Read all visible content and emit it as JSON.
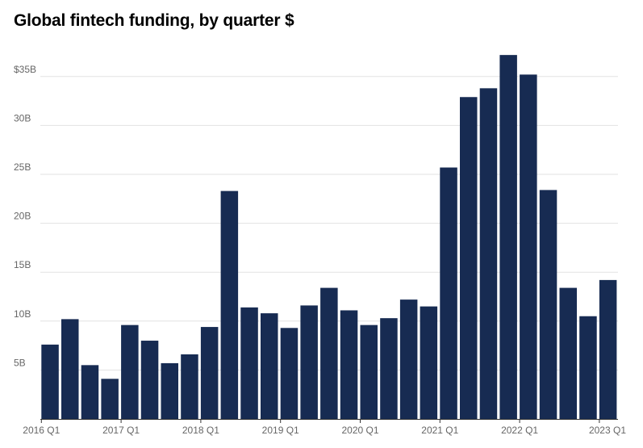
{
  "chart_data": {
    "type": "bar",
    "title": "Global fintech funding, by quarter $",
    "categories": [
      "2016 Q1",
      "2016 Q2",
      "2016 Q3",
      "2016 Q4",
      "2017 Q1",
      "2017 Q2",
      "2017 Q3",
      "2017 Q4",
      "2018 Q1",
      "2018 Q2",
      "2018 Q3",
      "2018 Q4",
      "2019 Q1",
      "2019 Q2",
      "2019 Q3",
      "2019 Q4",
      "2020 Q1",
      "2020 Q2",
      "2020 Q3",
      "2020 Q4",
      "2021 Q1",
      "2021 Q2",
      "2021 Q3",
      "2021 Q4",
      "2022 Q1",
      "2022 Q2",
      "2022 Q3",
      "2022 Q4",
      "2023 Q1"
    ],
    "values": [
      7.6,
      10.2,
      5.5,
      4.1,
      9.6,
      8.0,
      5.7,
      6.6,
      9.4,
      23.3,
      11.4,
      10.8,
      9.3,
      11.6,
      13.4,
      11.1,
      9.6,
      10.3,
      12.2,
      11.5,
      25.7,
      32.9,
      33.8,
      37.2,
      35.2,
      23.4,
      13.4,
      10.5,
      14.2
    ],
    "xlabel": "",
    "ylabel": "",
    "ylim": [
      0,
      38
    ],
    "y_ticks": [
      {
        "value": 5,
        "label": "5B"
      },
      {
        "value": 10,
        "label": "10B"
      },
      {
        "value": 15,
        "label": "15B"
      },
      {
        "value": 20,
        "label": "20B"
      },
      {
        "value": 25,
        "label": "25B"
      },
      {
        "value": 30,
        "label": "30B"
      },
      {
        "value": 35,
        "label": "$35B"
      }
    ],
    "x_ticks": [
      {
        "index": 0,
        "label": "2016 Q1"
      },
      {
        "index": 4,
        "label": "2017 Q1"
      },
      {
        "index": 8,
        "label": "2018 Q1"
      },
      {
        "index": 12,
        "label": "2019 Q1"
      },
      {
        "index": 16,
        "label": "2020 Q1"
      },
      {
        "index": 20,
        "label": "2021 Q1"
      },
      {
        "index": 24,
        "label": "2022 Q1"
      },
      {
        "index": 28,
        "label": "2023 Q1"
      }
    ],
    "grid": true,
    "legend": "none",
    "bar_color": "#172b52",
    "grid_color": "#e2e2e2",
    "axis_color": "#333333",
    "label_color": "#666666"
  }
}
